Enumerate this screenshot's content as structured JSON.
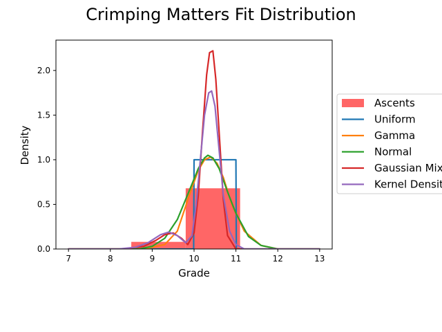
{
  "chart_data": {
    "type": "histogram_with_density_lines",
    "title": "Crimping Matters Fit Distribution",
    "xlabel": "Grade",
    "ylabel": "Density",
    "xlim": [
      6.7,
      13.3
    ],
    "ylim": [
      0,
      2.34
    ],
    "x_ticks": [
      7,
      8,
      9,
      10,
      11,
      12,
      13
    ],
    "y_ticks": [
      0.0,
      0.5,
      1.0,
      1.5,
      2.0
    ],
    "x_tick_labels": [
      "7",
      "8",
      "9",
      "10",
      "11",
      "12",
      "13"
    ],
    "y_tick_labels": [
      "0.0",
      "0.5",
      "1.0",
      "1.5",
      "2.0"
    ],
    "grid": false,
    "legend_position": "right, outside plot",
    "histogram": {
      "name": "Ascents",
      "color": "#ff6666",
      "bins": [
        {
          "x0": 8.5,
          "x1": 9.8,
          "density": 0.08
        },
        {
          "x0": 9.8,
          "x1": 11.1,
          "density": 0.68
        }
      ]
    },
    "series": [
      {
        "name": "Uniform",
        "color": "#1f77b4",
        "x": [
          7.0,
          9.99,
          10.0,
          11.0,
          11.01,
          13.0
        ],
        "y": [
          0.0,
          0.0,
          1.0,
          1.0,
          0.0,
          0.0
        ]
      },
      {
        "name": "Gamma",
        "color": "#ff7f0e",
        "x": [
          7.0,
          8.8,
          9.3,
          9.6,
          9.9,
          10.1,
          10.25,
          10.4,
          10.55,
          10.7,
          10.9,
          11.2,
          11.6,
          12.0,
          13.0
        ],
        "y": [
          0.0,
          0.0,
          0.05,
          0.2,
          0.62,
          0.88,
          1.0,
          1.03,
          0.96,
          0.8,
          0.5,
          0.2,
          0.04,
          0.0,
          0.0
        ]
      },
      {
        "name": "Normal",
        "color": "#2ca02c",
        "x": [
          7.0,
          8.7,
          9.0,
          9.3,
          9.6,
          9.9,
          10.1,
          10.25,
          10.33,
          10.45,
          10.6,
          10.8,
          11.0,
          11.3,
          11.6,
          12.0,
          13.0
        ],
        "y": [
          0.0,
          0.0,
          0.03,
          0.12,
          0.33,
          0.67,
          0.9,
          1.02,
          1.05,
          1.02,
          0.9,
          0.64,
          0.4,
          0.14,
          0.04,
          0.0,
          0.0
        ]
      },
      {
        "name": "Gaussian Mixture",
        "color": "#d62728",
        "x": [
          7.0,
          8.3,
          8.8,
          9.1,
          9.3,
          9.5,
          9.7,
          9.85,
          10.0,
          10.1,
          10.2,
          10.3,
          10.37,
          10.45,
          10.52,
          10.6,
          10.7,
          10.8,
          11.0,
          13.0
        ],
        "y": [
          0.0,
          0.0,
          0.03,
          0.1,
          0.16,
          0.18,
          0.12,
          0.05,
          0.18,
          0.6,
          1.3,
          1.95,
          2.2,
          2.22,
          1.9,
          1.3,
          0.55,
          0.15,
          0.0,
          0.0
        ]
      },
      {
        "name": "Kernel Density",
        "color": "#9467bd",
        "x": [
          7.0,
          8.2,
          8.6,
          8.9,
          9.2,
          9.4,
          9.6,
          9.8,
          9.95,
          10.05,
          10.15,
          10.25,
          10.35,
          10.42,
          10.5,
          10.6,
          10.7,
          10.85,
          11.0,
          11.2,
          13.0
        ],
        "y": [
          0.0,
          0.0,
          0.02,
          0.07,
          0.16,
          0.19,
          0.15,
          0.07,
          0.15,
          0.5,
          1.0,
          1.5,
          1.75,
          1.77,
          1.6,
          1.1,
          0.6,
          0.2,
          0.05,
          0.0,
          0.0
        ]
      }
    ]
  }
}
